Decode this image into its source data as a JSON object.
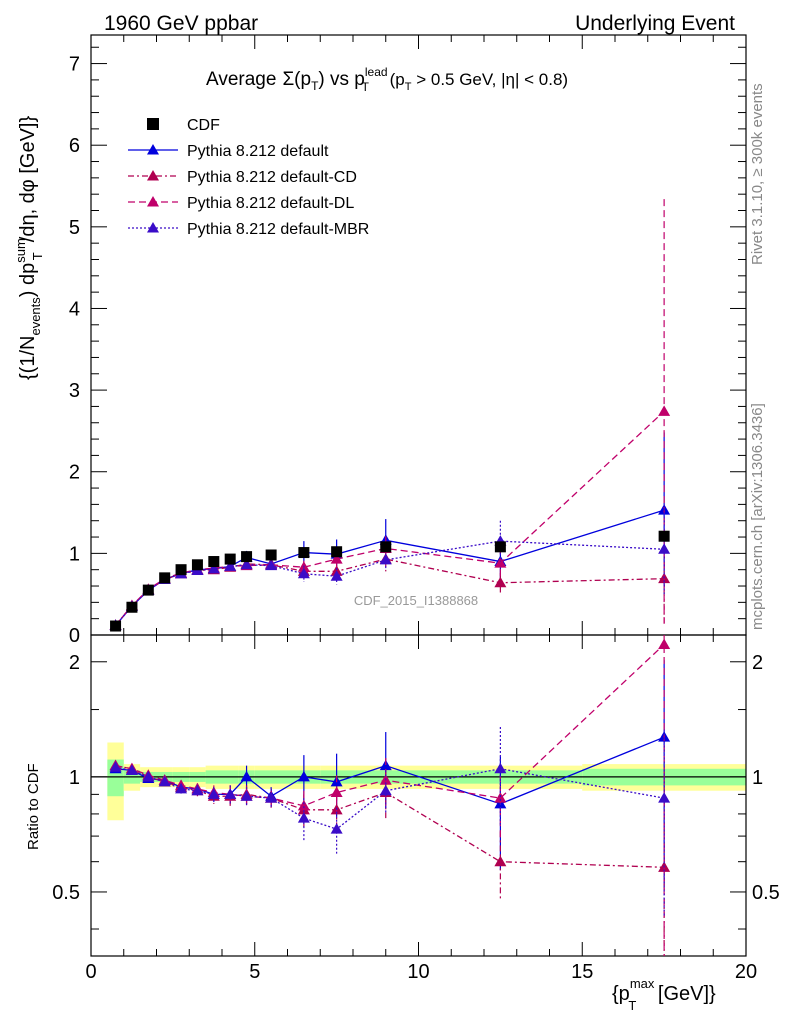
{
  "header": {
    "left": "1960 GeV ppbar",
    "right": "Underlying Event"
  },
  "side": {
    "rivet": "Rivet 3.1.10, ≥ 300k events",
    "mcplots": "mcplots.cern.ch [arXiv:1306.3436]"
  },
  "title_parts": {
    "prefix": "Average",
    "sigma": "Σ(p",
    "sub_t": "T",
    "close": ")",
    "vs": " vs p",
    "sup_lead": "lead",
    "sub_t2": "T",
    "cut": " (p",
    "sub_t3": "T",
    "cut_rest": " > 0.5 GeV, |η| < 0.8)"
  },
  "ylabel_parts": {
    "a": "{(1/N",
    "sub_events": "events",
    "b": ") dp",
    "sup_sum": "sum",
    "sub_t": "T",
    "c": "/dη, dφ [GeV]}"
  },
  "xlabel_parts": {
    "a": "{p",
    "sup_max": "max",
    "sub_t": "T",
    "b": " [GeV]}"
  },
  "ratio_ylabel": "Ratio to CDF",
  "watermark": "CDF_2015_I1388868",
  "colors": {
    "data": "#000000",
    "default": "#0000dd",
    "cd": "#b00050",
    "dl": "#c0006a",
    "mbr": "#3a0cc8",
    "band_yellow": "#ffff99",
    "band_green": "#99ff99"
  },
  "chart_data": [
    {
      "type": "scatter",
      "panel": "main",
      "xlim": [
        0,
        20
      ],
      "ylim": [
        0,
        7.35
      ],
      "yticks": [
        0,
        1,
        2,
        3,
        4,
        5,
        6,
        7
      ],
      "xticks": [
        0,
        5,
        10,
        15,
        20
      ],
      "legend_position": "top-left",
      "grid": false,
      "x": [
        0.75,
        1.25,
        1.75,
        2.25,
        2.75,
        3.25,
        3.75,
        4.25,
        4.75,
        5.5,
        6.5,
        7.5,
        9.0,
        12.5,
        17.5
      ],
      "series": [
        {
          "name": "CDF",
          "key": "data",
          "style": "square",
          "values": [
            0.11,
            0.34,
            0.55,
            0.7,
            0.8,
            0.86,
            0.9,
            0.93,
            0.96,
            0.98,
            1.01,
            1.02,
            1.08,
            1.08,
            1.21
          ]
        },
        {
          "name": "Pythia 8.212 default",
          "key": "default",
          "style": "solid",
          "values": [
            0.115,
            0.355,
            0.545,
            0.685,
            0.75,
            0.8,
            0.81,
            0.84,
            0.95,
            0.87,
            1.01,
            0.99,
            1.16,
            0.9,
            1.53
          ],
          "errors": [
            0.005,
            0.005,
            0.01,
            0.01,
            0.02,
            0.02,
            0.03,
            0.04,
            0.08,
            0.05,
            0.14,
            0.18,
            0.26,
            0.3,
            0.95
          ]
        },
        {
          "name": "Pythia 8.212 default-CD",
          "key": "cd",
          "style": "dashdot",
          "values": [
            0.12,
            0.36,
            0.55,
            0.68,
            0.75,
            0.79,
            0.8,
            0.83,
            0.87,
            0.86,
            0.78,
            0.78,
            0.93,
            0.64,
            0.69
          ],
          "errors": [
            0.005,
            0.005,
            0.01,
            0.01,
            0.02,
            0.02,
            0.04,
            0.05,
            0.05,
            0.05,
            0.08,
            0.08,
            0.15,
            0.12,
            0.55
          ]
        },
        {
          "name": "Pythia 8.212 default-DL",
          "key": "dl",
          "style": "dashed",
          "values": [
            0.12,
            0.36,
            0.56,
            0.69,
            0.76,
            0.8,
            0.82,
            0.84,
            0.85,
            0.86,
            0.83,
            0.93,
            1.06,
            0.88,
            2.74
          ],
          "errors": [
            0.005,
            0.005,
            0.01,
            0.01,
            0.02,
            0.02,
            0.04,
            0.05,
            0.05,
            0.05,
            0.08,
            0.1,
            0.15,
            0.2,
            2.6
          ]
        },
        {
          "name": "Pythia 8.212 default-MBR",
          "key": "mbr",
          "style": "dotted",
          "values": [
            0.12,
            0.35,
            0.55,
            0.68,
            0.75,
            0.79,
            0.81,
            0.84,
            0.86,
            0.85,
            0.75,
            0.72,
            0.92,
            1.15,
            1.05
          ],
          "errors": [
            0.005,
            0.005,
            0.01,
            0.01,
            0.02,
            0.02,
            0.04,
            0.05,
            0.05,
            0.05,
            0.1,
            0.1,
            0.12,
            0.25,
            0.55
          ]
        }
      ]
    },
    {
      "type": "line",
      "panel": "ratio",
      "xlim": [
        0,
        20
      ],
      "ylim": [
        0.34,
        2.35
      ],
      "log_y": true,
      "yticks": [
        0.5,
        1,
        2
      ],
      "grid": false,
      "bins": [
        [
          0.5,
          1.0
        ],
        [
          1.0,
          1.5
        ],
        [
          1.5,
          2.0
        ],
        [
          2.0,
          2.5
        ],
        [
          2.5,
          3.0
        ],
        [
          3.0,
          3.5
        ],
        [
          3.5,
          4.0
        ],
        [
          4.0,
          4.5
        ],
        [
          4.5,
          5.0
        ],
        [
          5.0,
          6.0
        ],
        [
          6.0,
          7.0
        ],
        [
          7.0,
          8.0
        ],
        [
          8.0,
          10.0
        ],
        [
          10.0,
          15.0
        ],
        [
          15.0,
          20.0
        ]
      ],
      "band_yellow": [
        0.23,
        0.08,
        0.06,
        0.06,
        0.06,
        0.06,
        0.07,
        0.07,
        0.07,
        0.07,
        0.07,
        0.07,
        0.07,
        0.07,
        0.08
      ],
      "band_green": [
        0.11,
        0.04,
        0.03,
        0.03,
        0.03,
        0.03,
        0.04,
        0.04,
        0.04,
        0.04,
        0.04,
        0.04,
        0.04,
        0.04,
        0.05
      ],
      "x": [
        0.75,
        1.25,
        1.75,
        2.25,
        2.75,
        3.25,
        3.75,
        4.25,
        4.75,
        5.5,
        6.5,
        7.5,
        9.0,
        12.5,
        17.5
      ],
      "series": [
        {
          "key": "default",
          "style": "solid",
          "values": [
            1.05,
            1.04,
            0.99,
            0.98,
            0.94,
            0.93,
            0.9,
            0.9,
            1.0,
            0.89,
            1.0,
            0.97,
            1.07,
            0.85,
            1.27
          ],
          "errors": [
            0.02,
            0.02,
            0.02,
            0.02,
            0.03,
            0.03,
            0.04,
            0.05,
            0.07,
            0.05,
            0.14,
            0.18,
            0.24,
            0.28,
            0.75
          ]
        },
        {
          "key": "cd",
          "style": "dashdot",
          "values": [
            1.07,
            1.05,
            1.0,
            0.97,
            0.94,
            0.92,
            0.89,
            0.89,
            0.9,
            0.88,
            0.82,
            0.82,
            0.91,
            0.6,
            0.58
          ],
          "errors": [
            0.02,
            0.02,
            0.02,
            0.02,
            0.03,
            0.03,
            0.04,
            0.05,
            0.05,
            0.05,
            0.08,
            0.08,
            0.13,
            0.12,
            0.45
          ]
        },
        {
          "key": "dl",
          "style": "dashed",
          "values": [
            1.07,
            1.05,
            1.01,
            0.98,
            0.95,
            0.93,
            0.91,
            0.9,
            0.89,
            0.88,
            0.84,
            0.91,
            0.98,
            0.88,
            2.22
          ],
          "errors": [
            0.02,
            0.02,
            0.02,
            0.02,
            0.03,
            0.03,
            0.04,
            0.05,
            0.05,
            0.05,
            0.08,
            0.1,
            0.14,
            0.2,
            1.9
          ]
        },
        {
          "key": "mbr",
          "style": "dotted",
          "values": [
            1.06,
            1.04,
            1.0,
            0.97,
            0.93,
            0.92,
            0.9,
            0.9,
            0.89,
            0.88,
            0.78,
            0.73,
            0.92,
            1.05,
            0.88
          ],
          "errors": [
            0.02,
            0.02,
            0.02,
            0.02,
            0.03,
            0.03,
            0.04,
            0.05,
            0.05,
            0.05,
            0.1,
            0.1,
            0.12,
            0.3,
            0.45
          ]
        }
      ]
    }
  ]
}
